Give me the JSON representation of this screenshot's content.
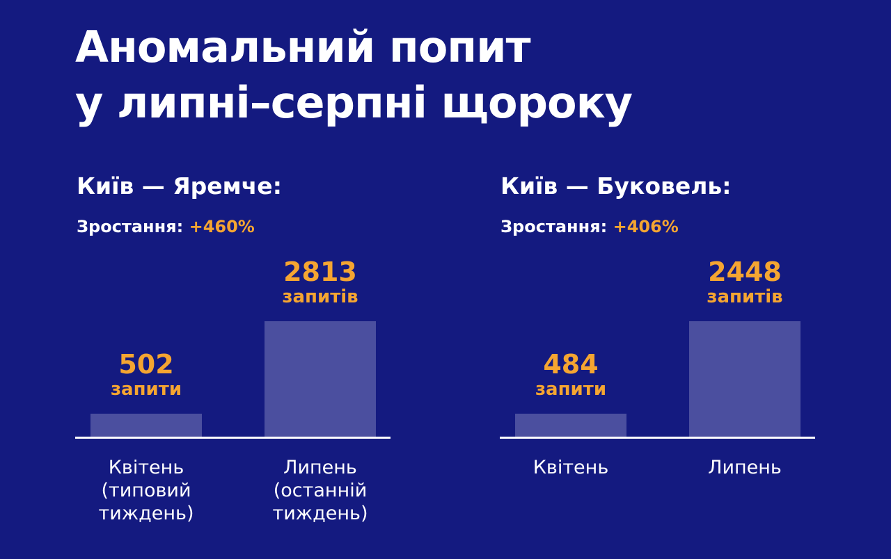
{
  "title_line1": "Аномальний попит",
  "title_line2": "у липні–серпні щороку",
  "colors": {
    "background": "#141a80",
    "bar": "#4b4f9f",
    "accent": "#f5a531",
    "text": "#ffffff"
  },
  "chart_data": [
    {
      "type": "bar",
      "title": "Київ — Яремче:",
      "growth_label": "Зростання:",
      "growth_value": "+460%",
      "categories": [
        "Квітень\n(типовий\nтиждень)",
        "Липень\n(останній\nтиждень)"
      ],
      "values": [
        502,
        2813
      ],
      "value_units": [
        "запити",
        "запитів"
      ],
      "ylim": [
        0,
        2813
      ]
    },
    {
      "type": "bar",
      "title": "Київ — Буковель:",
      "growth_label": "Зростання:",
      "growth_value": "+406%",
      "categories": [
        "Квітень",
        "Липень"
      ],
      "values": [
        484,
        2448
      ],
      "value_units": [
        "запити",
        "запитів"
      ],
      "ylim": [
        0,
        2448
      ]
    }
  ]
}
